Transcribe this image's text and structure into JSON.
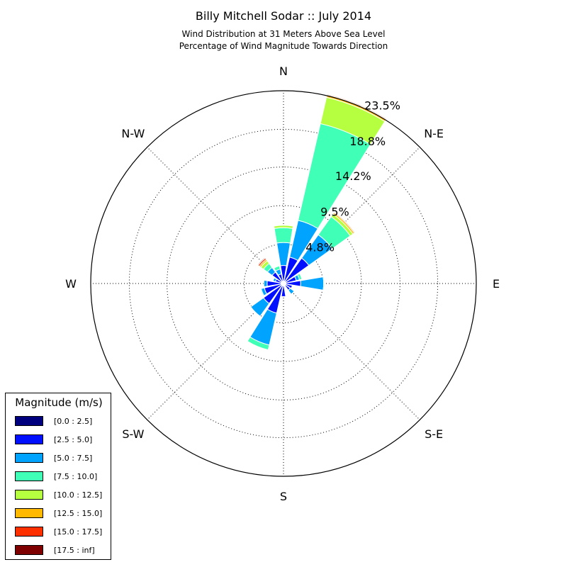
{
  "title": "Billy Mitchell Sodar :: July 2014",
  "subtitle_1": "Wind Distribution at 31 Meters Above Sea Level",
  "subtitle_2": "Percentage of Wind Magnitude Towards Direction",
  "legend": {
    "title": "Magnitude (m/s)",
    "items": [
      {
        "label": "[0.0 : 2.5]",
        "color": "#00007f"
      },
      {
        "label": "[2.5 : 5.0]",
        "color": "#0010ff"
      },
      {
        "label": "[5.0 : 7.5]",
        "color": "#00a4ff"
      },
      {
        "label": "[7.5 : 10.0]",
        "color": "#40ffb6"
      },
      {
        "label": "[10.0 : 12.5]",
        "color": "#b6ff40"
      },
      {
        "label": "[12.5 : 15.0]",
        "color": "#ffb900"
      },
      {
        "label": "[15.0 : 17.5]",
        "color": "#ff3000"
      },
      {
        "label": "[17.5 : inf]",
        "color": "#7f0000"
      }
    ]
  },
  "chart_data": {
    "type": "wind_rose",
    "title": "Billy Mitchell Sodar :: July 2014",
    "direction_labels": [
      "N",
      "N-E",
      "E",
      "S-E",
      "S",
      "S-W",
      "W",
      "N-W"
    ],
    "radial_ticks": [
      "4.8%",
      "9.5%",
      "14.2%",
      "18.8%",
      "23.5%"
    ],
    "radial_tick_values": [
      4.8,
      9.5,
      14.2,
      18.8,
      23.5
    ],
    "rmax": 23.5,
    "grid": true,
    "legend_placement": "lower-left",
    "bins": [
      "[0.0 : 2.5]",
      "[2.5 : 5.0]",
      "[5.0 : 7.5]",
      "[7.5 : 10.0]",
      "[10.0 : 12.5]",
      "[12.5 : 15.0]",
      "[15.0 : 17.5]",
      "[17.5 : inf]"
    ],
    "directions_deg": [
      0,
      22.5,
      45,
      67.5,
      90,
      112.5,
      135,
      157.5,
      180,
      202.5,
      225,
      247.5,
      270,
      292.5,
      315,
      337.5
    ],
    "values": [
      [
        0.3,
        1.9,
        2.8,
        1.8,
        0.3,
        0.0,
        0.0,
        0.0
      ],
      [
        0.3,
        3.0,
        4.6,
        12.1,
        3.3,
        0.3,
        0.1,
        0.0
      ],
      [
        0.3,
        3.5,
        3.5,
        2.7,
        0.4,
        0.2,
        0.1,
        0.0
      ],
      [
        0.3,
        1.3,
        0.4,
        0.3,
        0.0,
        0.0,
        0.0,
        0.0
      ],
      [
        0.3,
        1.8,
        2.8,
        0.1,
        0.0,
        0.0,
        0.0,
        0.0
      ],
      [
        0.3,
        0.8,
        0.0,
        0.0,
        0.0,
        0.0,
        0.0,
        0.0
      ],
      [
        0.3,
        0.7,
        0.6,
        0.0,
        0.0,
        0.0,
        0.0,
        0.0
      ],
      [
        0.3,
        0.0,
        0.0,
        0.0,
        0.0,
        0.0,
        0.0,
        0.0
      ],
      [
        0.3,
        1.3,
        0.0,
        0.0,
        0.0,
        0.0,
        0.0,
        0.0
      ],
      [
        0.3,
        3.4,
        4.0,
        0.6,
        0.0,
        0.0,
        0.0,
        0.0
      ],
      [
        0.3,
        2.7,
        1.9,
        0.0,
        0.0,
        0.0,
        0.0,
        0.0
      ],
      [
        0.3,
        2.1,
        0.4,
        0.1,
        0.0,
        0.0,
        0.0,
        0.0
      ],
      [
        0.3,
        1.7,
        0.4,
        0.0,
        0.0,
        0.0,
        0.0,
        0.0
      ],
      [
        0.3,
        0.7,
        0.3,
        0.0,
        0.0,
        0.0,
        0.0,
        0.0
      ],
      [
        0.3,
        1.4,
        0.7,
        0.6,
        0.4,
        0.2,
        0.2,
        0.1
      ],
      [
        0.3,
        0.9,
        0.6,
        0.4,
        0.0,
        0.0,
        0.0,
        0.0
      ]
    ]
  }
}
